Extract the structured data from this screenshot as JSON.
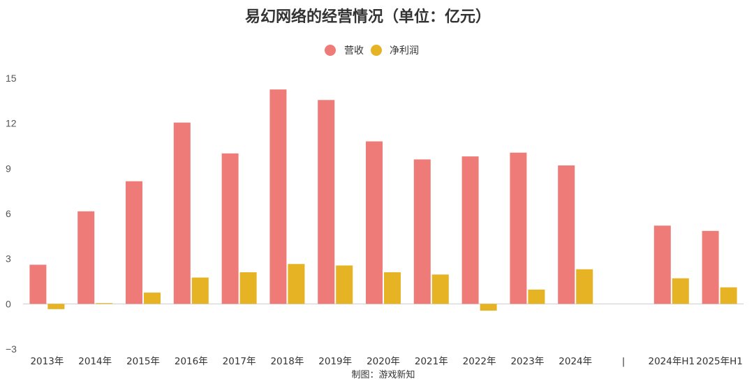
{
  "chart_data": {
    "type": "bar",
    "title": "易幻网络的经营情况（单位：亿元）",
    "categories": [
      "2013年",
      "2014年",
      "2015年",
      "2016年",
      "2017年",
      "2018年",
      "2019年",
      "2020年",
      "2021年",
      "2022年",
      "2023年",
      "2024年",
      "|",
      "2024年H1",
      "2025年H1"
    ],
    "series": [
      {
        "name": "营收",
        "color": "#ef7b78",
        "values": [
          2.6,
          6.15,
          8.15,
          12.05,
          10.0,
          14.25,
          13.55,
          10.8,
          9.6,
          9.8,
          10.05,
          9.2,
          null,
          5.2,
          4.85
        ]
      },
      {
        "name": "净利润",
        "color": "#e6b325",
        "values": [
          -0.35,
          0.05,
          0.75,
          1.75,
          2.1,
          2.65,
          2.55,
          2.1,
          1.95,
          -0.45,
          0.95,
          2.3,
          null,
          1.7,
          1.1
        ]
      }
    ],
    "ylim": [
      -3,
      15
    ],
    "yticks": [
      15,
      12,
      9,
      6,
      3,
      0,
      -3
    ],
    "ytick_labels": [
      "15",
      "12",
      "9",
      "6",
      "3",
      "0",
      "−3"
    ],
    "xlabel": "",
    "ylabel": "",
    "grid": false,
    "legend_position": "top-center",
    "source": "制图：游戏新知"
  }
}
